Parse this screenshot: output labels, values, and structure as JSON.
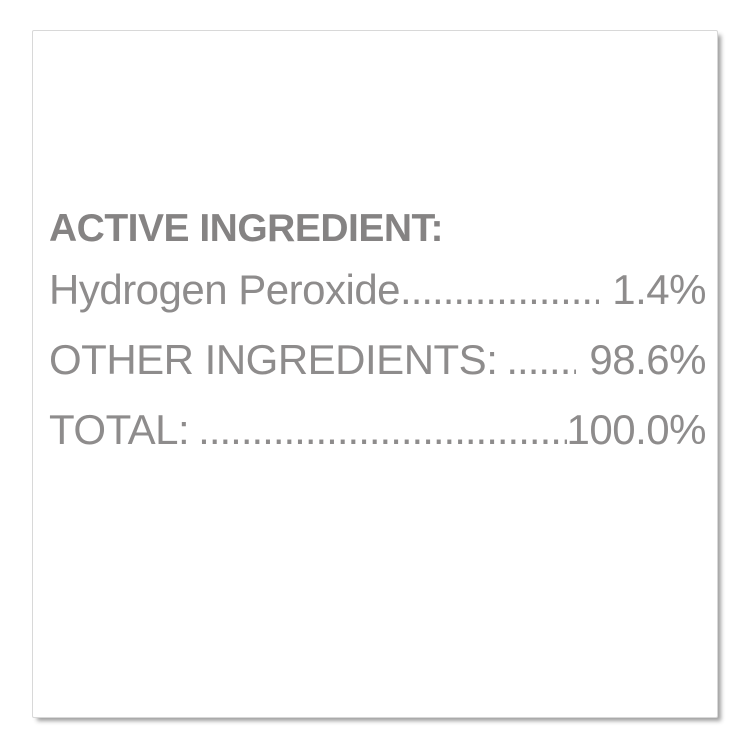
{
  "label": {
    "header": "ACTIVE INGREDIENT:",
    "rows": [
      {
        "name": "Hydrogen Peroxide",
        "leader": "......................................................................................",
        "value": "1.4%"
      },
      {
        "name": "OTHER INGREDIENTS:",
        "leader": "......................................................................................",
        "value": "98.6%"
      },
      {
        "name": "TOTAL:",
        "leader": "......................................................................................",
        "value": "100.0%"
      }
    ],
    "colors": {
      "text_gray": "#8e8c8c",
      "header_gray": "#858383",
      "card_border": "#d8d8d8",
      "card_background": "#ffffff"
    }
  }
}
